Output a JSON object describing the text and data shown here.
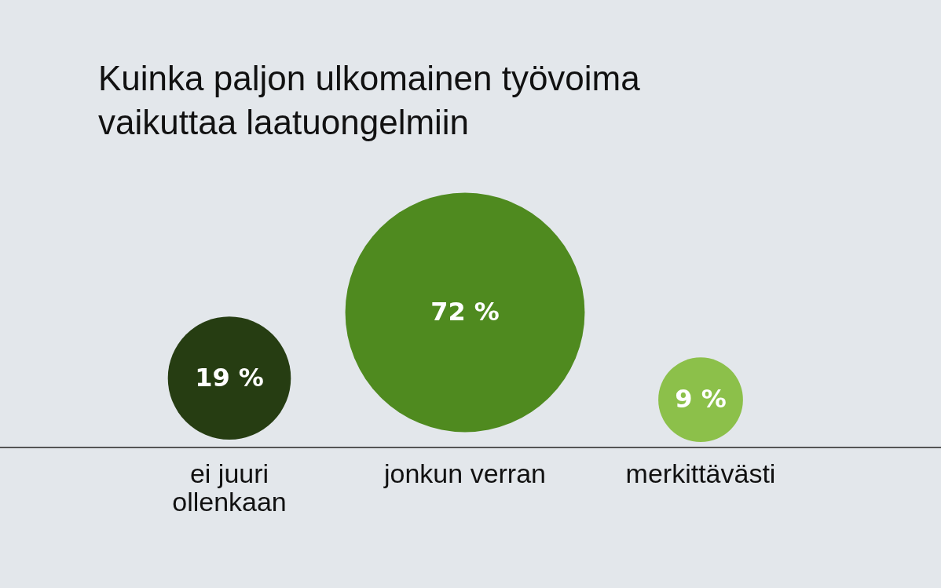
{
  "chart_data": {
    "type": "other",
    "title": "Kuinka paljon ulkomainen työvoima\nvaikuttaa laatuongelmiin",
    "categories": [
      "ei juuri\nollenkaan",
      "jonkun verran",
      "merkittävästi"
    ],
    "values": [
      19,
      72,
      9
    ],
    "value_labels": [
      "19 %",
      "72 %",
      "9 %"
    ],
    "colors": [
      "#263d12",
      "#4f8a1f",
      "#8cc04a"
    ]
  }
}
